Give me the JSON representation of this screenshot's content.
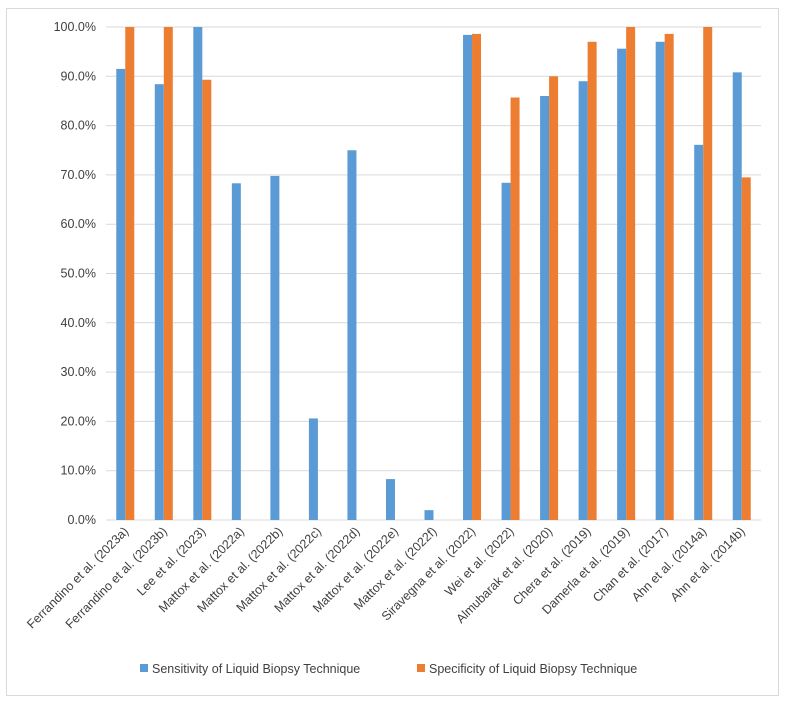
{
  "chart_data": {
    "type": "bar",
    "title": "",
    "xlabel": "",
    "ylabel": "",
    "ylim": [
      0,
      100
    ],
    "yticks": [
      "0.0%",
      "10.0%",
      "20.0%",
      "30.0%",
      "40.0%",
      "50.0%",
      "60.0%",
      "70.0%",
      "80.0%",
      "90.0%",
      "100.0%"
    ],
    "grid": true,
    "legend_position": "bottom",
    "categories": [
      "Ferrandino et al. (2023a)",
      "Ferrandino et al. (2023b)",
      "Lee et al. (2023)",
      "Mattox et al. (2022a)",
      "Mattox et al. (2022b)",
      "Mattox et al. (2022c)",
      "Mattox et al. (2022d)",
      "Mattox et al. (2022e)",
      "Mattox et al. (2022f)",
      "Siravegna et al. (2022)",
      "Wei et al. (2022)",
      "Almubarak et al. (2020)",
      "Chera et al. (2019)",
      "Damerla et al. (2019)",
      "Chan et al. (2017)",
      "Ahn et al. (2014a)",
      "Ahn et al. (2014b)"
    ],
    "series": [
      {
        "name": "Sensitivity of Liquid Biopsy Technique",
        "color": "#5b9bd5",
        "values": [
          91.5,
          88.4,
          100.0,
          68.3,
          69.8,
          20.6,
          75.0,
          8.3,
          2.0,
          98.4,
          68.4,
          86.0,
          89.0,
          95.6,
          97.0,
          76.1,
          90.8
        ]
      },
      {
        "name": "Specificity of Liquid Biopsy Technique",
        "color": "#ed7d31",
        "values": [
          100.0,
          100.0,
          89.3,
          null,
          null,
          null,
          null,
          null,
          null,
          98.6,
          85.7,
          90.0,
          97.0,
          100.0,
          98.6,
          100.0,
          69.5
        ]
      }
    ]
  },
  "colors": {
    "grid": "#d9d9d9",
    "axis": "#d9d9d9",
    "text": "#404040"
  }
}
